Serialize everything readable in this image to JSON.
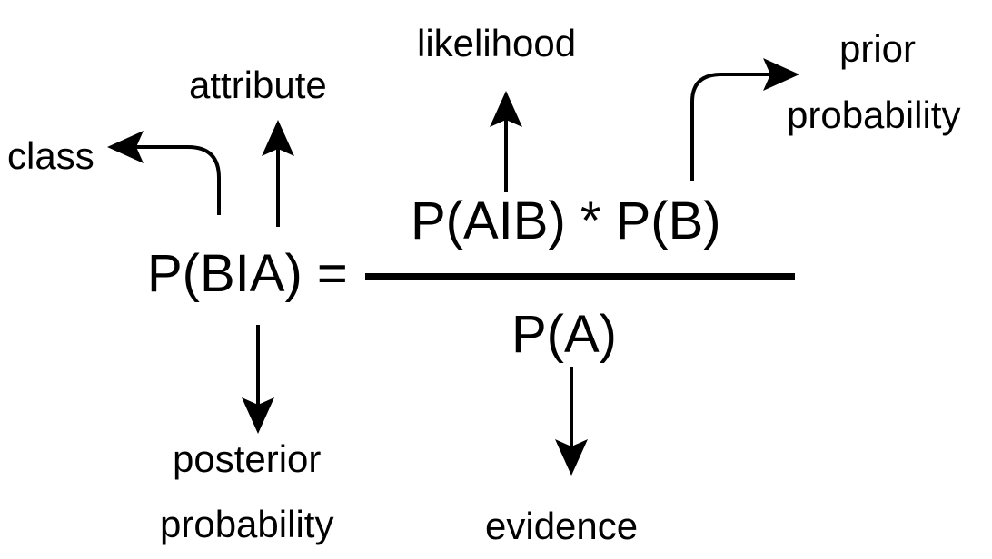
{
  "formula": {
    "lhs": "P(BIA) =",
    "numerator": "P(AIB) * P(B)",
    "denominator": "P(A)"
  },
  "labels": {
    "class": "class",
    "attribute": "attribute",
    "likelihood": "likelihood",
    "prior_line1": "prior",
    "prior_line2": "probability",
    "posterior_line1": "posterior",
    "posterior_line2": "probability",
    "evidence": "evidence"
  }
}
